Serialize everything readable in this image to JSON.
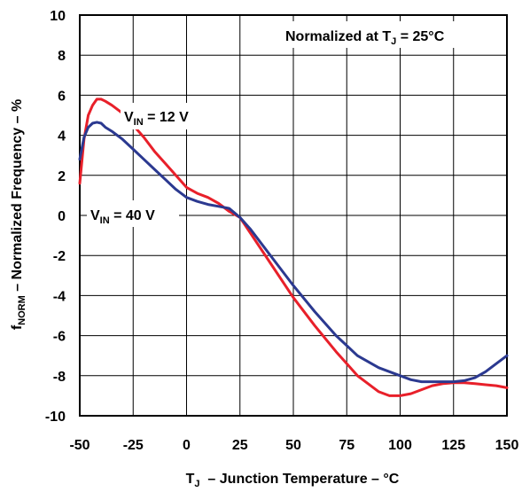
{
  "chart_data": {
    "type": "line",
    "title": "",
    "xlabel": {
      "main": "T",
      "sub": "J",
      "rest": "  – Junction Temperature – °C"
    },
    "ylabel": {
      "main": "f",
      "sub": "NORM",
      "rest": " – Normalized Frequency – %"
    },
    "xlim": [
      -50,
      150
    ],
    "ylim": [
      -10,
      10
    ],
    "xticks": [
      -50,
      -25,
      0,
      25,
      50,
      75,
      100,
      125,
      150
    ],
    "yticks": [
      -10,
      -8,
      -6,
      -4,
      -2,
      0,
      2,
      4,
      6,
      8,
      10
    ],
    "grid": true,
    "annotations": {
      "normalized": {
        "pre": "Normalized at T",
        "sub": "J",
        "post": " = 25°C"
      },
      "vin12": {
        "main": "V",
        "sub": "IN",
        "post": " = 12 V"
      },
      "vin40": {
        "main": "V",
        "sub": "IN",
        "post": " = 40 V"
      }
    },
    "series": [
      {
        "color": "#e8202a",
        "x": [
          -50,
          -48,
          -46,
          -44,
          -42,
          -40,
          -38,
          -35,
          -30,
          -25,
          -20,
          -15,
          -10,
          -5,
          0,
          5,
          10,
          15,
          20,
          25,
          30,
          40,
          50,
          60,
          70,
          75,
          80,
          90,
          95,
          100,
          105,
          110,
          115,
          120,
          125,
          130,
          135,
          140,
          145,
          150
        ],
        "y": [
          1.6,
          3.8,
          5.0,
          5.5,
          5.8,
          5.8,
          5.7,
          5.5,
          5.1,
          4.5,
          3.9,
          3.2,
          2.6,
          2.0,
          1.4,
          1.1,
          0.9,
          0.6,
          0.2,
          -0.1,
          -0.9,
          -2.5,
          -4.1,
          -5.5,
          -6.8,
          -7.4,
          -8.0,
          -8.8,
          -9.0,
          -9.0,
          -8.9,
          -8.7,
          -8.5,
          -8.4,
          -8.35,
          -8.35,
          -8.4,
          -8.45,
          -8.5,
          -8.6
        ]
      },
      {
        "color": "#2b3990",
        "x": [
          -50,
          -48,
          -46,
          -44,
          -42,
          -40,
          -38,
          -35,
          -30,
          -25,
          -20,
          -15,
          -10,
          -5,
          0,
          5,
          10,
          15,
          20,
          25,
          30,
          40,
          50,
          60,
          70,
          75,
          80,
          90,
          100,
          105,
          110,
          115,
          120,
          125,
          130,
          135,
          140,
          145,
          150
        ],
        "y": [
          2.8,
          3.9,
          4.4,
          4.6,
          4.65,
          4.6,
          4.4,
          4.2,
          3.8,
          3.3,
          2.8,
          2.3,
          1.8,
          1.3,
          0.9,
          0.7,
          0.55,
          0.45,
          0.35,
          -0.1,
          -0.7,
          -2.1,
          -3.5,
          -4.8,
          -6.0,
          -6.5,
          -7.0,
          -7.6,
          -8.0,
          -8.2,
          -8.3,
          -8.3,
          -8.3,
          -8.3,
          -8.25,
          -8.1,
          -7.8,
          -7.4,
          -7.0
        ]
      }
    ]
  }
}
